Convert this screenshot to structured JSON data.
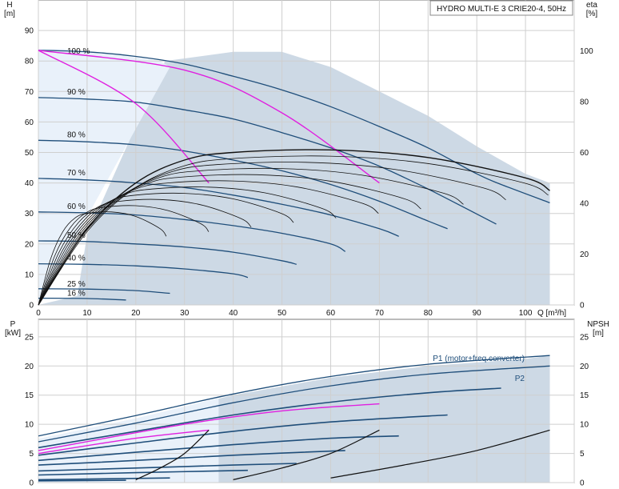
{
  "chart_data": [
    {
      "type": "line",
      "title": "HYDRO MULTI-E 3 CRIE20-4, 50Hz",
      "x_unit": "Q [m³/h]",
      "xlim": [
        0,
        110
      ],
      "x_ticks": [
        "0",
        "10",
        "20",
        "30",
        "40",
        "50",
        "60",
        "70",
        "80",
        "90",
        "100"
      ],
      "y_left_label": "H",
      "y_left_unit": "[m]",
      "ylim_left": [
        0,
        100
      ],
      "y_left_ticks": [
        "0",
        "10",
        "20",
        "30",
        "40",
        "50",
        "60",
        "70",
        "80",
        "90"
      ],
      "y_right_label": "eta",
      "y_right_unit": "[%]",
      "ylim_right": [
        0,
        120
      ],
      "y_right_ticks": [
        "0",
        "20",
        "40",
        "60",
        "80",
        "100"
      ],
      "grid": true,
      "speed_curves": [
        {
          "name": "100 %",
          "x": [
            0,
            10,
            20,
            30,
            40,
            50,
            60,
            70,
            80,
            90,
            95,
            105
          ],
          "y": [
            83.5,
            83,
            81.5,
            79,
            75,
            70.5,
            65,
            58.5,
            51.5,
            43,
            39.5,
            33.5
          ]
        },
        {
          "name": "90 %",
          "x": [
            0,
            10,
            20,
            30,
            40,
            50,
            60,
            70,
            80,
            94
          ],
          "y": [
            68,
            67.5,
            66.5,
            64,
            61,
            56.5,
            51.5,
            45.5,
            38,
            26.5
          ]
        },
        {
          "name": "80 %",
          "x": [
            0,
            10,
            20,
            30,
            40,
            50,
            60,
            70,
            80,
            84
          ],
          "y": [
            54,
            53.5,
            52.5,
            50.5,
            47.5,
            44,
            39.5,
            34,
            27.5,
            25
          ]
        },
        {
          "name": "70 %",
          "x": [
            0,
            10,
            20,
            30,
            40,
            50,
            60,
            70,
            74
          ],
          "y": [
            41.5,
            41,
            40,
            38.5,
            36,
            33,
            29.5,
            25,
            22.5
          ]
        },
        {
          "name": "60 %",
          "x": [
            0,
            10,
            20,
            30,
            40,
            50,
            60,
            63
          ],
          "y": [
            30.5,
            30.2,
            29.5,
            28,
            26,
            23.5,
            20,
            17.5
          ]
        },
        {
          "name": "50 %",
          "x": [
            0,
            10,
            20,
            30,
            40,
            50,
            53
          ],
          "y": [
            21,
            20.8,
            20,
            19,
            17.3,
            14.5,
            13.3
          ]
        },
        {
          "name": "40 %",
          "x": [
            0,
            10,
            20,
            30,
            40,
            43
          ],
          "y": [
            13.5,
            13.3,
            12.8,
            11.8,
            10.2,
            9
          ]
        },
        {
          "name": "25 %",
          "x": [
            0,
            10,
            20,
            27
          ],
          "y": [
            5.3,
            5.2,
            4.7,
            3.8
          ]
        },
        {
          "name": "16 %",
          "x": [
            0,
            10,
            18
          ],
          "y": [
            2.2,
            2.1,
            1.6
          ]
        }
      ],
      "system_curves": [
        {
          "x": [
            0,
            20,
            35
          ],
          "y": [
            83.5,
            66,
            40
          ]
        },
        {
          "x": [
            0,
            30,
            50,
            70
          ],
          "y": [
            83.5,
            77,
            63,
            40
          ]
        }
      ],
      "eta_max": [
        {
          "x": [
            0,
            10,
            20,
            30,
            40,
            60,
            80,
            100,
            105
          ],
          "y": [
            0,
            30,
            48,
            57,
            60,
            61,
            58,
            50,
            45
          ]
        }
      ],
      "area": {
        "x": [
          0,
          8,
          10,
          26,
          40,
          50,
          60,
          70,
          80,
          90,
          100,
          105
        ],
        "y": [
          0,
          3,
          23,
          80,
          83,
          83,
          78,
          70,
          62,
          52,
          43,
          40
        ]
      },
      "light_region": {
        "x": [
          0,
          5,
          10,
          21,
          25,
          27,
          0
        ],
        "y": [
          84,
          84,
          83,
          81,
          80,
          78,
          0
        ]
      }
    },
    {
      "type": "line",
      "title": "",
      "xlim": [
        0,
        110
      ],
      "y_left_label": "P",
      "y_left_unit": "[kW]",
      "ylim_left": [
        0,
        28
      ],
      "y_left_ticks": [
        "0",
        "5",
        "10",
        "15",
        "20",
        "25"
      ],
      "y_right_label": "NPSH",
      "y_right_unit": "[m]",
      "ylim_right": [
        0,
        28
      ],
      "y_right_ticks": [
        "0",
        "5",
        "10",
        "15",
        "20",
        "25"
      ],
      "grid": true,
      "annotations": [
        "P1 (motor+freq.converter)",
        "P2"
      ],
      "power_curves": [
        {
          "name": "P1 (motor+freq.converter)",
          "x": [
            0,
            20,
            40,
            60,
            80,
            105
          ],
          "y": [
            8,
            11.5,
            15.2,
            18.2,
            20.3,
            21.8
          ]
        },
        {
          "name": "P2",
          "x": [
            0,
            20,
            40,
            60,
            80,
            105
          ],
          "y": [
            7,
            10.2,
            13.7,
            16.6,
            18.6,
            20
          ]
        },
        {
          "x": [
            0,
            20,
            40,
            60,
            80,
            95
          ],
          "y": [
            6,
            8.8,
            11.6,
            13.8,
            15.4,
            16.2
          ]
        },
        {
          "x": [
            0,
            20,
            40,
            60,
            84
          ],
          "y": [
            4.7,
            6.8,
            8.8,
            10.4,
            11.6
          ]
        },
        {
          "x": [
            0,
            20,
            40,
            60,
            74
          ],
          "y": [
            3.8,
            5.2,
            6.5,
            7.6,
            8
          ]
        },
        {
          "x": [
            0,
            20,
            40,
            63
          ],
          "y": [
            3,
            3.8,
            4.7,
            5.5
          ]
        },
        {
          "x": [
            0,
            20,
            40,
            53
          ],
          "y": [
            2,
            2.5,
            3,
            3.3
          ]
        },
        {
          "x": [
            0,
            20,
            43
          ],
          "y": [
            1.3,
            1.7,
            2.1
          ]
        },
        {
          "x": [
            0,
            27
          ],
          "y": [
            0.5,
            0.8
          ]
        },
        {
          "x": [
            0,
            18
          ],
          "y": [
            0.3,
            0.4
          ]
        }
      ],
      "pink_curves": [
        {
          "x": [
            0,
            20,
            35
          ],
          "y": [
            5,
            7.6,
            9
          ]
        },
        {
          "x": [
            0,
            30,
            50,
            70
          ],
          "y": [
            5.5,
            10,
            12.3,
            13.5
          ]
        }
      ],
      "npsh_curves": [
        {
          "x": [
            20,
            25,
            30,
            35
          ],
          "y": [
            0.5,
            2.5,
            5,
            9
          ]
        },
        {
          "x": [
            40,
            50,
            60,
            70
          ],
          "y": [
            0.5,
            2.5,
            5,
            9
          ]
        },
        {
          "x": [
            60,
            75,
            90,
            105
          ],
          "y": [
            0.8,
            3,
            5.5,
            9
          ]
        }
      ],
      "area": {
        "x": [
          0,
          20,
          40,
          60,
          80,
          100,
          105
        ],
        "y": [
          7.5,
          11,
          15,
          18,
          20,
          21.2,
          21.8
        ]
      }
    }
  ]
}
